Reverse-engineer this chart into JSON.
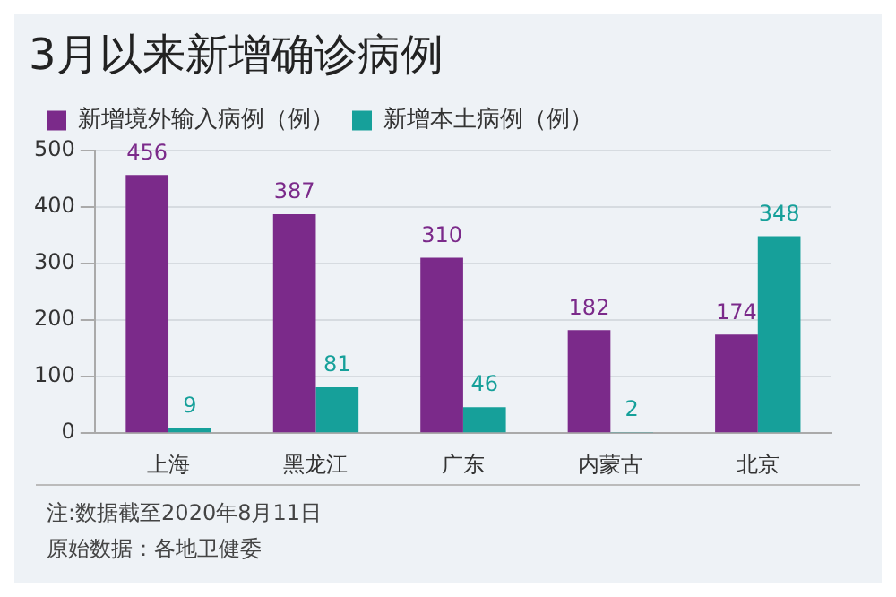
{
  "chart_data": {
    "type": "bar",
    "title": "3月以来新增确诊病例",
    "categories": [
      "上海",
      "黑龙江",
      "广东",
      "内蒙古",
      "北京"
    ],
    "series": [
      {
        "name": "新增境外输入病例（例）",
        "color": "#7b2a8a",
        "values": [
          456,
          387,
          310,
          182,
          174
        ]
      },
      {
        "name": "新增本土病例（例）",
        "color": "#16a09a",
        "values": [
          9,
          81,
          46,
          2,
          348
        ]
      }
    ],
    "ylim": [
      0,
      500
    ],
    "yticks": [
      0,
      100,
      200,
      300,
      400,
      500
    ],
    "grid": "y",
    "legend": "top left",
    "data_labels": true,
    "annotations": [
      "注:数据截至2020年8月11日",
      "原始数据：各地卫健委"
    ]
  }
}
